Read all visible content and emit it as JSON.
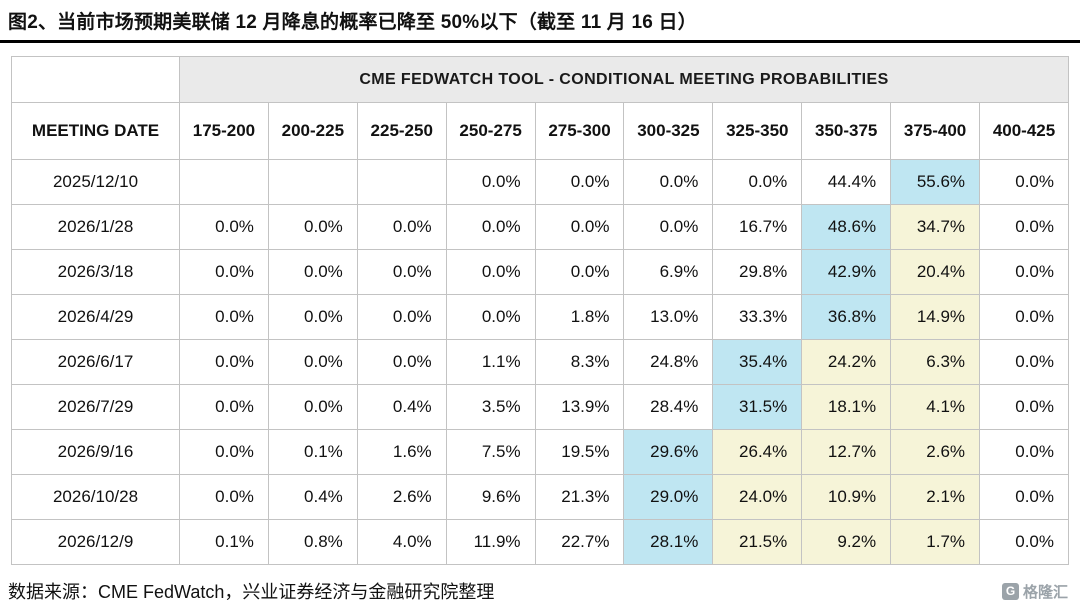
{
  "page": {
    "title": "图2、当前市场预期美联储 12 月降息的概率已降至 50%以下（截至 11 月 16 日）",
    "source_note": "数据来源：CME FedWatch，兴业证券经济与金融研究院整理",
    "logo_text": "格隆汇",
    "logo_icon_letter": "G"
  },
  "colors": {
    "highlight_blue": "#bfe6f2",
    "highlight_yellow": "#f6f4d8",
    "header_bg": "#eaeaea",
    "border": "#c3c3c3"
  },
  "chart_data": {
    "type": "table",
    "title": "CME FEDWATCH TOOL - CONDITIONAL MEETING PROBABILITIES",
    "columns": [
      "MEETING DATE",
      "175-200",
      "200-225",
      "225-250",
      "250-275",
      "275-300",
      "300-325",
      "325-350",
      "350-375",
      "375-400",
      "400-425"
    ],
    "rows": [
      {
        "meeting_date": "2025/12/10",
        "values": [
          "",
          "",
          "",
          "0.0%",
          "0.0%",
          "0.0%",
          "0.0%",
          "44.4%",
          "55.6%",
          "0.0%"
        ],
        "highlights": [
          null,
          null,
          null,
          null,
          null,
          null,
          null,
          null,
          "blue",
          null
        ]
      },
      {
        "meeting_date": "2026/1/28",
        "values": [
          "0.0%",
          "0.0%",
          "0.0%",
          "0.0%",
          "0.0%",
          "0.0%",
          "16.7%",
          "48.6%",
          "34.7%",
          "0.0%"
        ],
        "highlights": [
          null,
          null,
          null,
          null,
          null,
          null,
          null,
          "blue",
          "yellow",
          null
        ]
      },
      {
        "meeting_date": "2026/3/18",
        "values": [
          "0.0%",
          "0.0%",
          "0.0%",
          "0.0%",
          "0.0%",
          "6.9%",
          "29.8%",
          "42.9%",
          "20.4%",
          "0.0%"
        ],
        "highlights": [
          null,
          null,
          null,
          null,
          null,
          null,
          null,
          "blue",
          "yellow",
          null
        ]
      },
      {
        "meeting_date": "2026/4/29",
        "values": [
          "0.0%",
          "0.0%",
          "0.0%",
          "0.0%",
          "1.8%",
          "13.0%",
          "33.3%",
          "36.8%",
          "14.9%",
          "0.0%"
        ],
        "highlights": [
          null,
          null,
          null,
          null,
          null,
          null,
          null,
          "blue",
          "yellow",
          null
        ]
      },
      {
        "meeting_date": "2026/6/17",
        "values": [
          "0.0%",
          "0.0%",
          "0.0%",
          "1.1%",
          "8.3%",
          "24.8%",
          "35.4%",
          "24.2%",
          "6.3%",
          "0.0%"
        ],
        "highlights": [
          null,
          null,
          null,
          null,
          null,
          null,
          "blue",
          "yellow",
          "yellow",
          null
        ]
      },
      {
        "meeting_date": "2026/7/29",
        "values": [
          "0.0%",
          "0.0%",
          "0.4%",
          "3.5%",
          "13.9%",
          "28.4%",
          "31.5%",
          "18.1%",
          "4.1%",
          "0.0%"
        ],
        "highlights": [
          null,
          null,
          null,
          null,
          null,
          null,
          "blue",
          "yellow",
          "yellow",
          null
        ]
      },
      {
        "meeting_date": "2026/9/16",
        "values": [
          "0.0%",
          "0.1%",
          "1.6%",
          "7.5%",
          "19.5%",
          "29.6%",
          "26.4%",
          "12.7%",
          "2.6%",
          "0.0%"
        ],
        "highlights": [
          null,
          null,
          null,
          null,
          null,
          "blue",
          "yellow",
          "yellow",
          "yellow",
          null
        ]
      },
      {
        "meeting_date": "2026/10/28",
        "values": [
          "0.0%",
          "0.4%",
          "2.6%",
          "9.6%",
          "21.3%",
          "29.0%",
          "24.0%",
          "10.9%",
          "2.1%",
          "0.0%"
        ],
        "highlights": [
          null,
          null,
          null,
          null,
          null,
          "blue",
          "yellow",
          "yellow",
          "yellow",
          null
        ]
      },
      {
        "meeting_date": "2026/12/9",
        "values": [
          "0.1%",
          "0.8%",
          "4.0%",
          "11.9%",
          "22.7%",
          "28.1%",
          "21.5%",
          "9.2%",
          "1.7%",
          "0.0%"
        ],
        "highlights": [
          null,
          null,
          null,
          null,
          null,
          "blue",
          "yellow",
          "yellow",
          "yellow",
          null
        ]
      }
    ]
  }
}
